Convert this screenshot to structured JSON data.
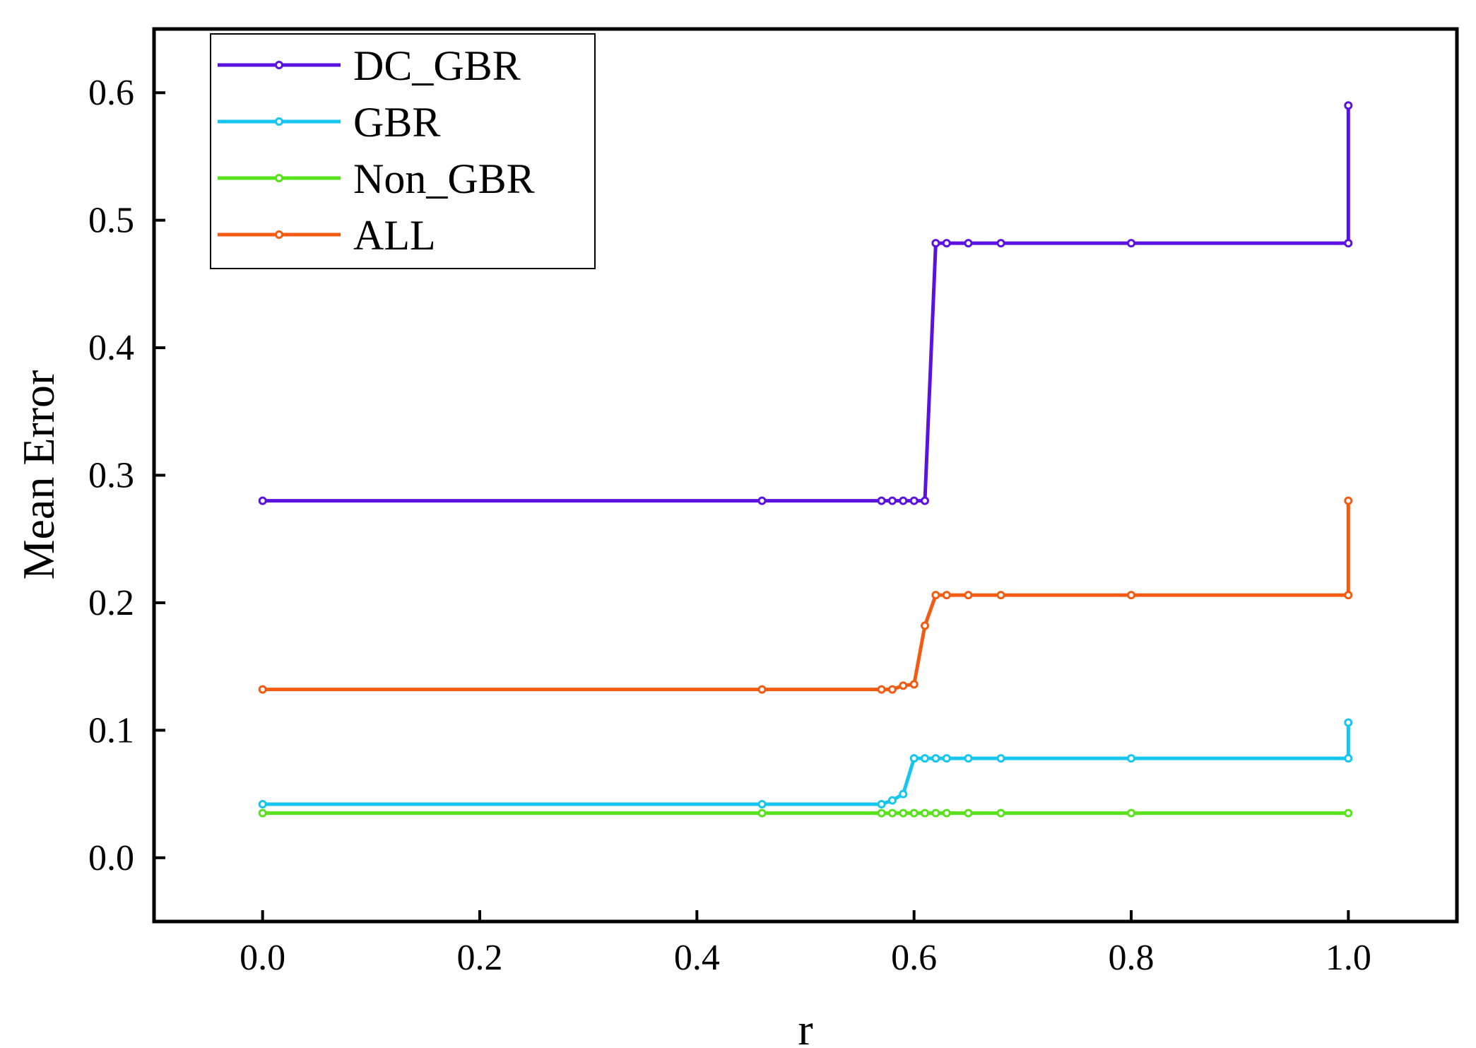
{
  "chart_data": {
    "type": "line",
    "title": "",
    "xlabel": "r",
    "ylabel": "Mean Error",
    "xlim": [
      -0.1,
      1.1
    ],
    "ylim": [
      -0.05,
      0.65
    ],
    "xticks": [
      0.0,
      0.2,
      0.4,
      0.6,
      0.8,
      1.0
    ],
    "xtick_labels": [
      "0.0",
      "0.2",
      "0.4",
      "0.6",
      "0.8",
      "1.0"
    ],
    "yticks": [
      0.0,
      0.1,
      0.2,
      0.3,
      0.4,
      0.5,
      0.6
    ],
    "ytick_labels": [
      "0.0",
      "0.1",
      "0.2",
      "0.3",
      "0.4",
      "0.5",
      "0.6"
    ],
    "grid": false,
    "legend_position": "top-left",
    "series": [
      {
        "name": "DC_GBR",
        "color": "#5b12e0",
        "x": [
          0.0,
          0.46,
          0.57,
          0.58,
          0.59,
          0.6,
          0.61,
          0.62,
          0.63,
          0.65,
          0.68,
          0.8,
          1.0,
          1.0
        ],
        "y": [
          0.28,
          0.28,
          0.28,
          0.28,
          0.28,
          0.28,
          0.28,
          0.482,
          0.482,
          0.482,
          0.482,
          0.482,
          0.482,
          0.59
        ]
      },
      {
        "name": "GBR",
        "color": "#17c6ef",
        "x": [
          0.0,
          0.46,
          0.57,
          0.58,
          0.59,
          0.6,
          0.61,
          0.62,
          0.63,
          0.65,
          0.68,
          0.8,
          1.0,
          1.0
        ],
        "y": [
          0.042,
          0.042,
          0.042,
          0.045,
          0.05,
          0.078,
          0.078,
          0.078,
          0.078,
          0.078,
          0.078,
          0.078,
          0.078,
          0.106
        ]
      },
      {
        "name": "Non_GBR",
        "color": "#58e21c",
        "x": [
          0.0,
          0.46,
          0.57,
          0.58,
          0.59,
          0.6,
          0.61,
          0.62,
          0.63,
          0.65,
          0.68,
          0.8,
          1.0
        ],
        "y": [
          0.035,
          0.035,
          0.035,
          0.035,
          0.035,
          0.035,
          0.035,
          0.035,
          0.035,
          0.035,
          0.035,
          0.035,
          0.035
        ]
      },
      {
        "name": "ALL",
        "color": "#f45b12",
        "x": [
          0.0,
          0.46,
          0.57,
          0.58,
          0.59,
          0.6,
          0.61,
          0.62,
          0.63,
          0.65,
          0.68,
          0.8,
          1.0,
          1.0
        ],
        "y": [
          0.132,
          0.132,
          0.132,
          0.132,
          0.135,
          0.136,
          0.182,
          0.206,
          0.206,
          0.206,
          0.206,
          0.206,
          0.206,
          0.28
        ]
      }
    ]
  }
}
